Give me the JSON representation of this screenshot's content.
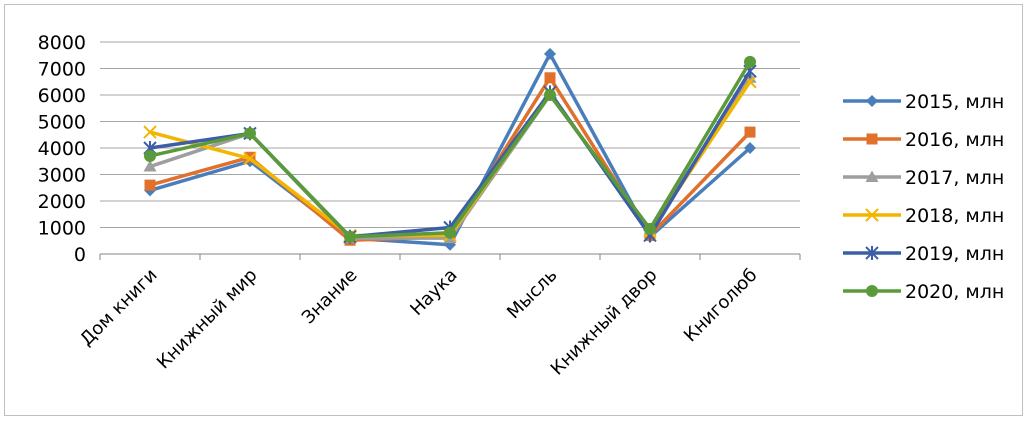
{
  "chart_data": {
    "type": "line",
    "title": "",
    "xlabel": "",
    "ylabel": "",
    "ylim": [
      0,
      8000
    ],
    "y_ticks": [
      "0",
      "1000",
      "2000",
      "3000",
      "4000",
      "5000",
      "6000",
      "7000",
      "8000"
    ],
    "grid": true,
    "legend_position": "right",
    "categories": [
      "Дом книги",
      "Книжный мир",
      "Знание",
      "Наука",
      "Мысль",
      "Книжный двор",
      "Книголюб"
    ],
    "series": [
      {
        "name": "2015, млн",
        "color": "#4a7ebb",
        "marker": "diamond",
        "values": [
          2400,
          3500,
          600,
          350,
          7550,
          650,
          4000
        ]
      },
      {
        "name": "2016, млн",
        "color": "#e0702c",
        "marker": "square",
        "values": [
          2600,
          3650,
          520,
          650,
          6650,
          700,
          4600
        ]
      },
      {
        "name": "2017, млн",
        "color": "#9e9e9e",
        "marker": "triangle",
        "values": [
          3300,
          4550,
          600,
          600,
          6000,
          900,
          6650
        ]
      },
      {
        "name": "2018, млн",
        "color": "#f2b600",
        "marker": "x",
        "values": [
          4600,
          3600,
          700,
          700,
          6050,
          850,
          6500
        ]
      },
      {
        "name": "2019, млн",
        "color": "#3d5ea6",
        "marker": "star",
        "values": [
          4000,
          4550,
          650,
          1000,
          6100,
          700,
          6900
        ]
      },
      {
        "name": "2020, млн",
        "color": "#5b9a3a",
        "marker": "circle",
        "values": [
          3700,
          4550,
          650,
          800,
          6000,
          950,
          7250
        ]
      }
    ]
  }
}
